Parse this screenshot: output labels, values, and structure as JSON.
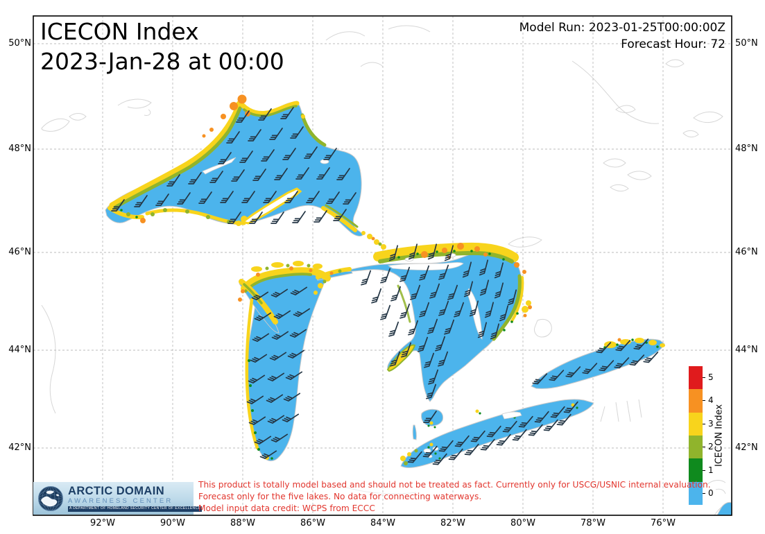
{
  "title": {
    "line1": "ICECON Index",
    "line2": "2023-Jan-28 at 00:00"
  },
  "model_info": {
    "model_run": "Model Run: 2023-01-25T00:00:00Z",
    "forecast_hour": "Forecast Hour: 72"
  },
  "axes": {
    "lat_labels": [
      "50°N",
      "48°N",
      "46°N",
      "44°N",
      "42°N"
    ],
    "lon_labels": [
      "92°W",
      "90°W",
      "88°W",
      "86°W",
      "84°W",
      "82°W",
      "80°W",
      "78°W",
      "76°W"
    ]
  },
  "colorbar": {
    "label": "ICECON Index",
    "ticks": [
      "5",
      "4",
      "3",
      "2",
      "1",
      "0"
    ],
    "colors": {
      "0": "#4cb4ec",
      "1": "#0f8a1e",
      "2": "#90b42c",
      "3": "#f8d41c",
      "4": "#f79122",
      "5": "#e01b1d"
    }
  },
  "disclaimer": {
    "line1": "This product is totally model based and should not be treated as fact. Currently only for USCG/USNIC internal evaluation.",
    "line2": "Forecast only for the five lakes. No data for connecting waterways.",
    "line3": "Model input data credit: WCPS from ECCC",
    "color": "#e2362e"
  },
  "logo": {
    "title": "ARCTIC DOMAIN",
    "subtitle": "AWARENESS CENTER",
    "tagline": "A DEPARTMENT OF HOMELAND SECURITY CENTER OF EXCELLENCE"
  },
  "map": {
    "lake_fill": "#4cb4ec",
    "wind_barb_color": "#243645",
    "gridline_color": "#bbbbbb",
    "coastline_color": "#d6d6d6",
    "wind_barbs": {
      "groups": [
        {
          "rot": 0,
          "pts": [
            [
              352,
              170
            ],
            [
              384,
              167
            ],
            [
              416,
              165
            ],
            [
              338,
              200
            ],
            [
              369,
              197
            ],
            [
              400,
              195
            ],
            [
              430,
              193
            ],
            [
              326,
              230
            ],
            [
              357,
              228
            ],
            [
              388,
              226
            ],
            [
              419,
              224
            ],
            [
              450,
              222
            ],
            [
              478,
              224
            ],
            [
              252,
              262
            ],
            [
              283,
              259
            ],
            [
              314,
              257
            ],
            [
              345,
              255
            ],
            [
              376,
              254
            ],
            [
              407,
              253
            ],
            [
              438,
              252
            ],
            [
              468,
              252
            ],
            [
              497,
              253
            ],
            [
              205,
              292
            ],
            [
              236,
              290
            ],
            [
              267,
              288
            ],
            [
              298,
              287
            ],
            [
              329,
              286
            ],
            [
              360,
              286
            ],
            [
              391,
              286
            ],
            [
              422,
              286
            ],
            [
              453,
              286
            ],
            [
              482,
              287
            ],
            [
              506,
              288
            ],
            [
              172,
              298
            ],
            [
              340,
              316
            ],
            [
              371,
              316
            ],
            [
              402,
              316
            ],
            [
              433,
              315
            ],
            [
              464,
              314
            ],
            [
              492,
              312
            ],
            [
              622,
              603
            ]
          ]
        },
        {
          "rot": 22,
          "pts": [
            [
              376,
              428
            ],
            [
              404,
              424
            ],
            [
              432,
              421
            ],
            [
              380,
              458
            ],
            [
              408,
              455
            ],
            [
              436,
              452
            ],
            [
              377,
              488
            ],
            [
              405,
              485
            ],
            [
              431,
              482
            ],
            [
              374,
              518
            ],
            [
              402,
              515
            ],
            [
              428,
              512
            ],
            [
              371,
              548
            ],
            [
              399,
              545
            ],
            [
              425,
              543
            ],
            [
              369,
              578
            ],
            [
              397,
              576
            ],
            [
              422,
              574
            ],
            [
              372,
              608
            ],
            [
              399,
              606
            ],
            [
              420,
              604
            ],
            [
              380,
              636
            ],
            [
              404,
              633
            ],
            [
              388,
              657
            ]
          ]
        },
        {
          "rot": -15,
          "pts": [
            [
              530,
              402
            ],
            [
              558,
              399
            ],
            [
              586,
              397
            ],
            [
              614,
              395
            ],
            [
              642,
              394
            ],
            [
              545,
              428
            ],
            [
              573,
              425
            ],
            [
              601,
              423
            ],
            [
              629,
              421
            ],
            [
              655,
              423
            ],
            [
              558,
              452
            ],
            [
              586,
              450
            ],
            [
              614,
              448
            ],
            [
              642,
              446
            ],
            [
              664,
              448
            ],
            [
              570,
              476
            ],
            [
              598,
              474
            ],
            [
              626,
              472
            ],
            [
              650,
              473
            ],
            [
              612,
              498
            ],
            [
              637,
              497
            ],
            [
              588,
              506
            ],
            [
              572,
              519
            ],
            [
              621,
              521
            ],
            [
              641,
              519
            ],
            [
              627,
              545
            ],
            [
              624,
              566
            ]
          ]
        },
        {
          "rot": -20,
          "pts": [
            [
              570,
              366
            ],
            [
              598,
              364
            ],
            [
              626,
              364
            ],
            [
              650,
              366
            ],
            [
              676,
              390
            ],
            [
              700,
              387
            ],
            [
              722,
              391
            ],
            [
              678,
              418
            ],
            [
              701,
              416
            ],
            [
              722,
              420
            ],
            [
              741,
              430
            ],
            [
              686,
              446
            ],
            [
              708,
              448
            ],
            [
              729,
              453
            ],
            [
              698,
              477
            ],
            [
              716,
              479
            ]
          ]
        },
        {
          "rot": 5,
          "pts": [
            [
              600,
              661
            ],
            [
              622,
              653
            ],
            [
              645,
              645
            ],
            [
              668,
              638
            ],
            [
              691,
              631
            ],
            [
              714,
              624
            ],
            [
              737,
              617
            ],
            [
              760,
              610
            ],
            [
              783,
              603
            ],
            [
              806,
              596
            ],
            [
              825,
              589
            ],
            [
              636,
              664
            ],
            [
              659,
              657
            ],
            [
              682,
              650
            ],
            [
              705,
              643
            ],
            [
              728,
              636
            ],
            [
              751,
              629
            ],
            [
              774,
              622
            ],
            [
              796,
              615
            ],
            [
              815,
              607
            ]
          ]
        },
        {
          "rot": 8,
          "pts": [
            [
              780,
              548
            ],
            [
              804,
              543
            ],
            [
              828,
              538
            ],
            [
              852,
              533
            ],
            [
              876,
              529
            ],
            [
              898,
              525
            ],
            [
              920,
              521
            ],
            [
              940,
              517
            ],
            [
              872,
              503
            ],
            [
              900,
              500
            ],
            [
              926,
              498
            ]
          ]
        }
      ]
    }
  }
}
